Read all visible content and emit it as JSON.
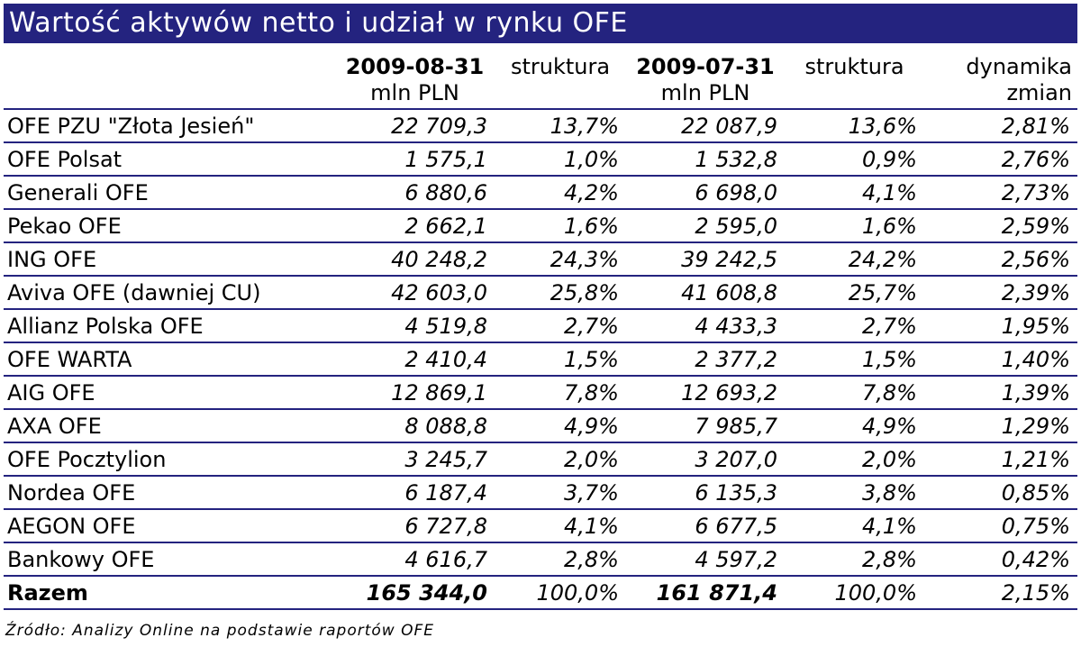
{
  "title": "Wartość aktywów netto i udział w rynku OFE",
  "headers": {
    "date1": "2009-08-31",
    "unit1": "mln PLN",
    "share1": "struktura",
    "date2": "2009-07-31",
    "unit2": "mln PLN",
    "share2": "struktura",
    "dyn1": "dynamika",
    "dyn2": "zmian"
  },
  "rows": [
    {
      "name": "OFE PZU \"Złota Jesień\"",
      "v1": "22 709,3",
      "s1": "13,7%",
      "v2": "22 087,9",
      "s2": "13,6%",
      "dyn": "2,81%"
    },
    {
      "name": "OFE Polsat",
      "v1": "1 575,1",
      "s1": "1,0%",
      "v2": "1 532,8",
      "s2": "0,9%",
      "dyn": "2,76%"
    },
    {
      "name": "Generali OFE",
      "v1": "6 880,6",
      "s1": "4,2%",
      "v2": "6 698,0",
      "s2": "4,1%",
      "dyn": "2,73%"
    },
    {
      "name": "Pekao OFE",
      "v1": "2 662,1",
      "s1": "1,6%",
      "v2": "2 595,0",
      "s2": "1,6%",
      "dyn": "2,59%"
    },
    {
      "name": "ING OFE",
      "v1": "40 248,2",
      "s1": "24,3%",
      "v2": "39 242,5",
      "s2": "24,2%",
      "dyn": "2,56%"
    },
    {
      "name": "Aviva OFE (dawniej CU)",
      "v1": "42 603,0",
      "s1": "25,8%",
      "v2": "41 608,8",
      "s2": "25,7%",
      "dyn": "2,39%"
    },
    {
      "name": "Allianz Polska OFE",
      "v1": "4 519,8",
      "s1": "2,7%",
      "v2": "4 433,3",
      "s2": "2,7%",
      "dyn": "1,95%"
    },
    {
      "name": "OFE WARTA",
      "v1": "2 410,4",
      "s1": "1,5%",
      "v2": "2 377,2",
      "s2": "1,5%",
      "dyn": "1,40%"
    },
    {
      "name": "AIG OFE",
      "v1": "12 869,1",
      "s1": "7,8%",
      "v2": "12 693,2",
      "s2": "7,8%",
      "dyn": "1,39%"
    },
    {
      "name": "AXA OFE",
      "v1": "8 088,8",
      "s1": "4,9%",
      "v2": "7 985,7",
      "s2": "4,9%",
      "dyn": "1,29%"
    },
    {
      "name": "OFE Pocztylion",
      "v1": "3 245,7",
      "s1": "2,0%",
      "v2": "3 207,0",
      "s2": "2,0%",
      "dyn": "1,21%"
    },
    {
      "name": "Nordea OFE",
      "v1": "6 187,4",
      "s1": "3,7%",
      "v2": "6 135,3",
      "s2": "3,8%",
      "dyn": "0,85%"
    },
    {
      "name": "AEGON OFE",
      "v1": "6 727,8",
      "s1": "4,1%",
      "v2": "6 677,5",
      "s2": "4,1%",
      "dyn": "0,75%"
    },
    {
      "name": "Bankowy OFE",
      "v1": "4 616,7",
      "s1": "2,8%",
      "v2": "4 597,2",
      "s2": "2,8%",
      "dyn": "0,42%"
    }
  ],
  "total": {
    "name": "Razem",
    "v1": "165 344,0",
    "s1": "100,0%",
    "v2": "161 871,4",
    "s2": "100,0%",
    "dyn": "2,15%"
  },
  "source": "Źródło: Analizy Online na podstawie raportów OFE",
  "colors": {
    "title_bg": "#24237f",
    "title_text": "#ffffff",
    "row_rule": "#24237f"
  }
}
